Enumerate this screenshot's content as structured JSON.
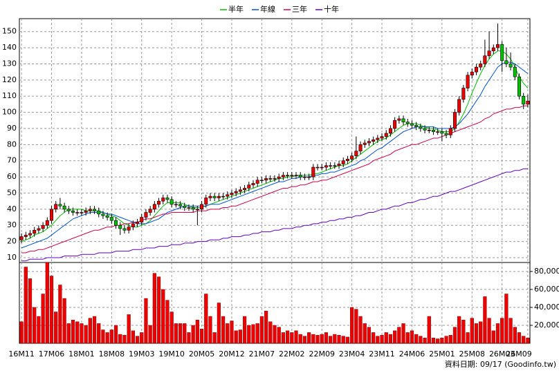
{
  "chart_data": {
    "type": "candlestick",
    "categories": [
      "16M11",
      null,
      null,
      null,
      null,
      null,
      null,
      "17M06",
      null,
      null,
      null,
      null,
      null,
      null,
      "18M01",
      null,
      null,
      null,
      null,
      null,
      null,
      "18M08",
      null,
      null,
      null,
      null,
      null,
      null,
      "19M03",
      null,
      null,
      null,
      null,
      null,
      null,
      "19M10",
      null,
      null,
      null,
      null,
      null,
      null,
      "20M05",
      null,
      null,
      null,
      null,
      null,
      null,
      "20M12",
      null,
      null,
      null,
      null,
      null,
      null,
      "21M07",
      null,
      null,
      null,
      null,
      null,
      null,
      "22M02",
      null,
      null,
      null,
      null,
      null,
      null,
      "22M09",
      null,
      null,
      null,
      null,
      null,
      null,
      "23M04",
      null,
      null,
      null,
      null,
      null,
      null,
      "23M11",
      null,
      null,
      null,
      null,
      null,
      null,
      "24M06",
      null,
      null,
      null,
      null,
      null,
      null,
      "25M01",
      null,
      null,
      null,
      null,
      null,
      null,
      "25M08",
      null,
      null,
      null,
      null,
      null,
      null,
      "26M03",
      null,
      null,
      null,
      null,
      null,
      "26M09"
    ],
    "open": [
      21,
      23,
      24,
      25,
      27,
      28,
      30,
      33,
      40,
      43,
      42,
      40,
      39,
      38,
      38,
      38,
      39,
      40,
      39,
      37,
      36,
      35,
      33,
      30,
      28,
      27,
      29,
      31,
      32,
      35,
      38,
      40,
      43,
      45,
      47,
      46,
      43,
      43,
      42,
      41,
      41,
      40,
      40,
      43,
      47,
      48,
      47,
      48,
      48,
      49,
      50,
      51,
      52,
      53,
      55,
      56,
      58,
      58,
      59,
      59,
      59,
      60,
      61,
      61,
      61,
      61,
      60,
      60,
      60,
      66,
      66,
      66,
      67,
      67,
      67,
      68,
      70,
      71,
      73,
      76,
      80,
      81,
      82,
      83,
      84,
      85,
      87,
      90,
      95,
      96,
      94,
      93,
      92,
      91,
      90,
      89,
      89,
      88,
      88,
      87,
      86,
      90,
      100,
      108,
      115,
      123,
      125,
      128,
      130,
      135,
      138,
      140,
      142,
      132,
      130,
      128,
      122,
      110,
      105
    ],
    "high": [
      25,
      26,
      27,
      29,
      30,
      32,
      35,
      42,
      45,
      47,
      44,
      42,
      41,
      40,
      40,
      41,
      42,
      42,
      41,
      39,
      38,
      37,
      35,
      32,
      30,
      31,
      33,
      34,
      37,
      40,
      42,
      45,
      47,
      49,
      49,
      48,
      45,
      45,
      44,
      43,
      43,
      42,
      45,
      49,
      50,
      50,
      50,
      50,
      51,
      52,
      53,
      54,
      55,
      57,
      58,
      60,
      60,
      61,
      61,
      61,
      62,
      63,
      63,
      63,
      63,
      63,
      62,
      62,
      68,
      68,
      68,
      69,
      69,
      69,
      70,
      72,
      73,
      75,
      85,
      82,
      83,
      84,
      85,
      86,
      87,
      89,
      92,
      97,
      98,
      98,
      96,
      95,
      94,
      93,
      92,
      91,
      91,
      90,
      90,
      89,
      92,
      102,
      110,
      117,
      125,
      127,
      130,
      132,
      145,
      150,
      142,
      155,
      144,
      140,
      137,
      130,
      124,
      112,
      111
    ],
    "low": [
      19,
      21,
      22,
      23,
      25,
      26,
      28,
      31,
      38,
      40,
      38,
      37,
      36,
      36,
      36,
      36,
      37,
      37,
      35,
      34,
      33,
      31,
      28,
      24,
      25,
      25,
      27,
      29,
      30,
      33,
      36,
      38,
      41,
      43,
      44,
      41,
      41,
      40,
      39,
      39,
      38,
      30,
      38,
      41,
      45,
      45,
      45,
      46,
      46,
      47,
      48,
      49,
      50,
      51,
      53,
      54,
      56,
      56,
      57,
      57,
      57,
      58,
      59,
      59,
      59,
      58,
      58,
      58,
      58,
      64,
      64,
      64,
      65,
      65,
      65,
      66,
      68,
      69,
      71,
      74,
      78,
      79,
      80,
      81,
      82,
      83,
      85,
      88,
      93,
      92,
      91,
      90,
      89,
      88,
      87,
      87,
      86,
      86,
      82,
      84,
      84,
      88,
      98,
      106,
      113,
      121,
      123,
      126,
      128,
      133,
      136,
      138,
      125,
      128,
      126,
      120,
      108,
      102,
      103
    ],
    "close": [
      23,
      24,
      25,
      27,
      28,
      30,
      33,
      40,
      43,
      42,
      40,
      39,
      38,
      38,
      38,
      39,
      40,
      39,
      37,
      36,
      35,
      33,
      30,
      28,
      27,
      29,
      31,
      32,
      35,
      38,
      40,
      43,
      45,
      47,
      46,
      43,
      43,
      42,
      41,
      41,
      40,
      40,
      43,
      47,
      48,
      47,
      48,
      48,
      49,
      50,
      51,
      52,
      53,
      55,
      56,
      58,
      58,
      59,
      59,
      59,
      60,
      61,
      61,
      61,
      61,
      60,
      60,
      60,
      66,
      66,
      66,
      67,
      67,
      67,
      68,
      70,
      71,
      73,
      76,
      80,
      81,
      82,
      83,
      84,
      85,
      87,
      90,
      95,
      96,
      94,
      93,
      92,
      91,
      90,
      89,
      89,
      88,
      88,
      87,
      86,
      90,
      100,
      108,
      115,
      123,
      125,
      128,
      130,
      135,
      138,
      140,
      142,
      132,
      130,
      128,
      122,
      110,
      105,
      107
    ],
    "up_color": "#ee0000",
    "down_color": "#00c000",
    "series": [
      {
        "name": "半年",
        "color": "#00c000",
        "values": [
          20,
          21,
          22,
          24,
          25,
          26,
          28,
          30,
          33,
          36,
          38,
          40,
          40,
          40,
          40,
          39,
          39,
          39,
          39,
          38,
          37,
          36,
          35,
          33,
          31,
          30,
          29,
          29,
          30,
          31,
          33,
          36,
          39,
          42,
          44,
          44,
          44,
          44,
          43,
          42,
          41,
          41,
          41,
          42,
          43,
          44,
          45,
          46,
          47,
          48,
          49,
          50,
          51,
          52,
          53,
          54,
          55,
          56,
          57,
          58,
          59,
          59,
          60,
          60,
          61,
          61,
          61,
          61,
          62,
          62,
          63,
          64,
          65,
          66,
          67,
          67,
          68,
          70,
          72,
          74,
          76,
          78,
          80,
          82,
          83,
          84,
          86,
          88,
          90,
          92,
          93,
          93,
          93,
          92,
          91,
          90,
          90,
          89,
          88,
          88,
          88,
          90,
          94,
          99,
          105,
          112,
          118,
          124,
          129,
          133,
          136,
          138,
          138,
          136,
          133,
          128,
          122,
          118,
          115
        ]
      },
      {
        "name": "年線",
        "color": "#0050d0",
        "values": [
          16,
          17,
          18,
          19,
          20,
          21,
          22,
          24,
          26,
          28,
          30,
          32,
          34,
          35,
          36,
          37,
          38,
          38,
          38,
          38,
          37,
          37,
          36,
          35,
          34,
          33,
          32,
          31,
          31,
          31,
          32,
          33,
          34,
          36,
          38,
          39,
          40,
          41,
          42,
          42,
          42,
          42,
          42,
          42,
          43,
          43,
          43,
          44,
          45,
          46,
          47,
          48,
          49,
          50,
          51,
          52,
          53,
          54,
          55,
          56,
          57,
          57,
          58,
          59,
          59,
          60,
          60,
          60,
          61,
          61,
          62,
          62,
          63,
          63,
          64,
          65,
          66,
          67,
          68,
          70,
          71,
          73,
          75,
          77,
          78,
          80,
          82,
          84,
          86,
          88,
          89,
          90,
          91,
          91,
          91,
          91,
          91,
          90,
          90,
          90,
          90,
          91,
          93,
          96,
          99,
          103,
          107,
          111,
          116,
          120,
          124,
          128,
          130,
          131,
          131,
          130,
          128,
          126,
          124
        ]
      },
      {
        "name": "三年",
        "color": "#d0004a",
        "values": [
          13,
          13,
          14,
          14,
          15,
          15,
          16,
          17,
          18,
          19,
          20,
          21,
          22,
          23,
          24,
          25,
          26,
          27,
          27,
          28,
          29,
          29,
          30,
          30,
          31,
          31,
          32,
          32,
          33,
          34,
          34,
          35,
          36,
          37,
          37,
          38,
          38,
          38,
          38,
          38,
          38,
          39,
          39,
          39,
          40,
          40,
          40,
          41,
          41,
          42,
          42,
          43,
          44,
          45,
          46,
          47,
          48,
          49,
          50,
          51,
          52,
          53,
          53,
          54,
          54,
          55,
          55,
          56,
          57,
          57,
          58,
          58,
          59,
          60,
          61,
          62,
          63,
          64,
          65,
          66,
          67,
          68,
          70,
          71,
          72,
          73,
          74,
          76,
          77,
          78,
          79,
          80,
          80,
          81,
          82,
          83,
          84,
          84,
          85,
          86,
          87,
          88,
          89,
          90,
          91,
          92,
          93,
          94,
          96,
          97,
          99,
          100,
          101,
          102,
          102,
          103,
          103,
          104,
          104
        ]
      },
      {
        "name": "十年",
        "color": "#6000c0",
        "values": [
          8,
          8,
          9,
          9,
          9,
          9,
          10,
          10,
          10,
          10,
          11,
          11,
          11,
          11,
          12,
          12,
          12,
          12,
          13,
          13,
          13,
          13,
          14,
          14,
          14,
          14,
          15,
          15,
          15,
          16,
          16,
          16,
          17,
          17,
          17,
          18,
          18,
          18,
          19,
          19,
          19,
          20,
          20,
          20,
          21,
          21,
          21,
          22,
          22,
          23,
          23,
          23,
          24,
          24,
          25,
          25,
          26,
          26,
          26,
          27,
          27,
          28,
          28,
          28,
          29,
          29,
          30,
          30,
          31,
          31,
          32,
          32,
          33,
          33,
          34,
          34,
          35,
          35,
          36,
          36,
          37,
          38,
          38,
          39,
          40,
          40,
          41,
          42,
          42,
          43,
          44,
          44,
          45,
          46,
          46,
          47,
          48,
          48,
          49,
          50,
          51,
          51,
          52,
          53,
          54,
          55,
          56,
          57,
          58,
          59,
          60,
          61,
          62,
          63,
          63,
          64,
          64,
          65,
          65
        ]
      }
    ],
    "ylim": [
      7,
      158
    ],
    "yticks": [
      10,
      20,
      30,
      40,
      50,
      60,
      70,
      80,
      90,
      100,
      110,
      120,
      130,
      140,
      150
    ],
    "grid": true,
    "volume": {
      "color": "#ee0000",
      "values": [
        24000,
        85000,
        72000,
        40000,
        30000,
        55000,
        90000,
        75000,
        35000,
        65000,
        50000,
        22000,
        26000,
        24000,
        22000,
        20000,
        28000,
        30000,
        22000,
        15000,
        12000,
        15000,
        20000,
        10000,
        9000,
        32000,
        14000,
        8000,
        12000,
        50000,
        20000,
        78000,
        74000,
        60000,
        48000,
        35000,
        22000,
        22000,
        22000,
        12000,
        20000,
        26000,
        16000,
        55000,
        30000,
        12000,
        45000,
        30000,
        22000,
        25000,
        14000,
        15000,
        30000,
        20000,
        21000,
        22000,
        30000,
        36000,
        24000,
        20000,
        18000,
        12000,
        14000,
        12000,
        14000,
        10000,
        8000,
        12000,
        10000,
        9000,
        10000,
        12000,
        8000,
        10000,
        9000,
        8000,
        7000,
        40000,
        38000,
        30000,
        22000,
        18000,
        12000,
        8000,
        9000,
        12000,
        10000,
        14000,
        18000,
        22000,
        12000,
        14000,
        10000,
        8000,
        6000,
        30000,
        6000,
        5000,
        6000,
        8000,
        9000,
        18000,
        30000,
        26000,
        12000,
        28000,
        22000,
        24000,
        52000,
        28000,
        14000,
        22000,
        28000,
        55000,
        28000,
        18000,
        12000,
        8000,
        6000
      ],
      "ylim": [
        0,
        90000
      ],
      "yticks": [
        {
          "value": 20000,
          "label": "20,000"
        },
        {
          "value": 40000,
          "label": "40,000"
        },
        {
          "value": 60000,
          "label": "60,000"
        },
        {
          "value": 80000,
          "label": "80,000"
        }
      ]
    },
    "footer": "資料日期: 09/17 (Goodinfo.tw)"
  }
}
